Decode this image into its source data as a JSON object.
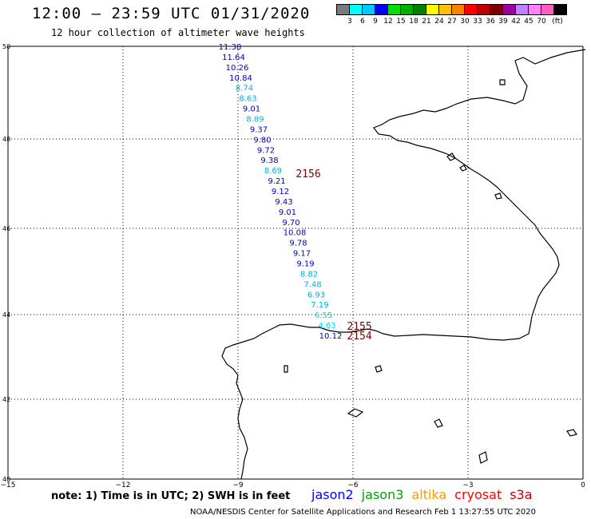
{
  "header": {
    "title": "12:00 — 23:59 UTC 01/31/2020",
    "subtitle": "12 hour collection of altimeter wave heights"
  },
  "colorbar": {
    "colors": [
      "#7a7a7a",
      "#00ffff",
      "#00c8ff",
      "#0000ff",
      "#00e000",
      "#00b000",
      "#008000",
      "#ffff00",
      "#ffc000",
      "#ff8000",
      "#ff0000",
      "#c00000",
      "#800000",
      "#a000a0",
      "#c080ff",
      "#ff80ff",
      "#ff60c0",
      "#000000"
    ],
    "labels": [
      "3",
      "6",
      "9",
      "12",
      "15",
      "18",
      "21",
      "24",
      "27",
      "30",
      "33",
      "36",
      "39",
      "42",
      "45",
      "70",
      "(ft)"
    ]
  },
  "map": {
    "lon_range": [
      -15,
      0
    ],
    "lat_range": [
      40,
      50
    ],
    "x_ticks": [
      "−15",
      "−12",
      "−9",
      "−6",
      "−3",
      "0"
    ],
    "y_ticks": [
      "50",
      "48",
      "46",
      "44",
      "42",
      "40"
    ],
    "grid": "dotted"
  },
  "track": [
    {
      "text": "11.38",
      "color": "#0000c0"
    },
    {
      "text": "11.64",
      "color": "#0000c0"
    },
    {
      "text": "10.26",
      "color": "#0000c0"
    },
    {
      "text": "10.84",
      "color": "#0000c0"
    },
    {
      "text": "8.74",
      "color": "#00b0e0"
    },
    {
      "text": "8.63",
      "color": "#00b0e0"
    },
    {
      "text": "9.01",
      "color": "#0000c0"
    },
    {
      "text": "8.89",
      "color": "#00b0e0"
    },
    {
      "text": "9.37",
      "color": "#0000c0"
    },
    {
      "text": "9.80",
      "color": "#0000c0"
    },
    {
      "text": "9.72",
      "color": "#0000c0"
    },
    {
      "text": "9.38",
      "color": "#0000c0"
    },
    {
      "text": "8.69",
      "color": "#00b0e0"
    },
    {
      "text": "9.21",
      "color": "#0000c0"
    },
    {
      "text": "9.12",
      "color": "#0000c0"
    },
    {
      "text": "9.43",
      "color": "#0000c0"
    },
    {
      "text": "9.01",
      "color": "#0000c0"
    },
    {
      "text": "9.70",
      "color": "#0000c0"
    },
    {
      "text": "10.08",
      "color": "#0000c0"
    },
    {
      "text": "9.78",
      "color": "#0000c0"
    },
    {
      "text": "9.17",
      "color": "#0000c0"
    },
    {
      "text": "9.19",
      "color": "#0000c0"
    },
    {
      "text": "8.82",
      "color": "#00b0e0"
    },
    {
      "text": "7.48",
      "color": "#00b0e0"
    },
    {
      "text": "6.93",
      "color": "#00b0e0"
    },
    {
      "text": "7.19",
      "color": "#00b0e0"
    },
    {
      "text": "6.55",
      "color": "#00d8f0"
    },
    {
      "text": "4.63",
      "color": "#00d8f0"
    },
    {
      "text": "10.12",
      "color": "#0000c0"
    }
  ],
  "time_labels": [
    {
      "text": "2156",
      "color": "#800000"
    },
    {
      "text": "2155",
      "color": "#800000"
    },
    {
      "text": "2154",
      "color": "#800000"
    }
  ],
  "footer": {
    "note": "note: 1) Time is in UTC; 2) SWH is in feet",
    "satellites": [
      {
        "name": "jason2",
        "color": "#0000ff"
      },
      {
        "name": "jason3",
        "color": "#00a000"
      },
      {
        "name": "altika",
        "color": "#ff9900"
      },
      {
        "name": "cryosat",
        "color": "#ff0000"
      },
      {
        "name": "s3a",
        "color": "#c00000"
      }
    ],
    "credit": "NOAA/NESDIS Center for Satellite Applications and Research    Feb  1 13:27:55 UTC 2020"
  }
}
